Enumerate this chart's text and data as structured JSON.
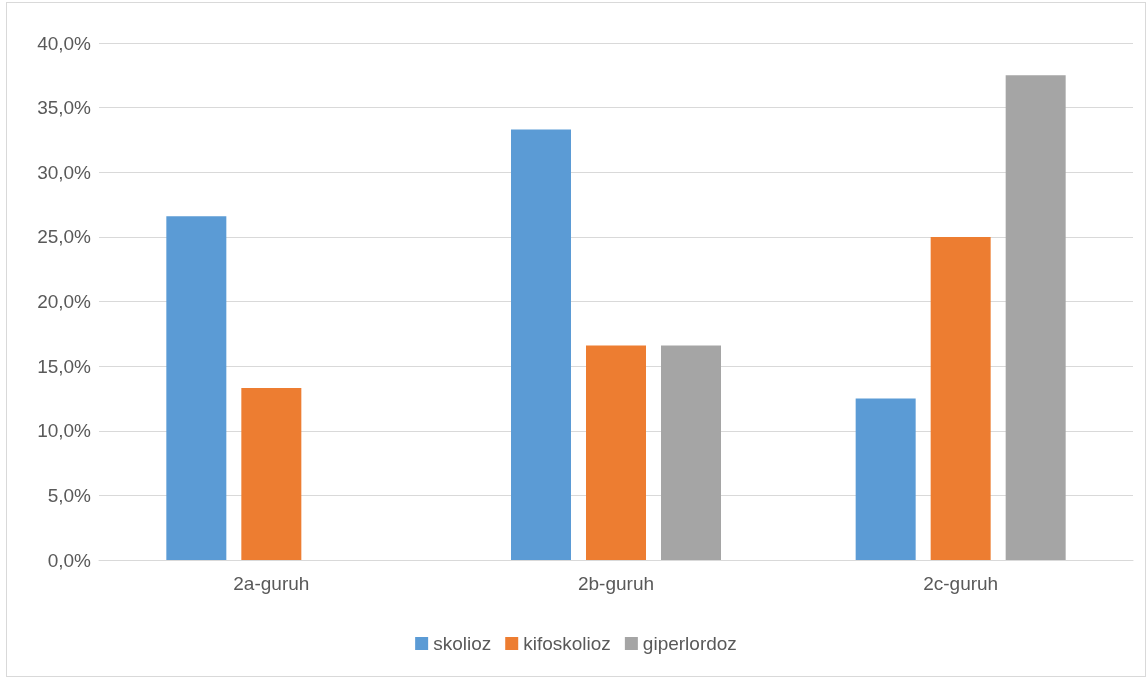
{
  "chart_data": {
    "type": "bar",
    "categories": [
      "2a-guruh",
      "2b-guruh",
      "2c-guruh"
    ],
    "series": [
      {
        "name": "skolioz",
        "color": "#5b9bd5",
        "values": [
          26.6,
          33.3,
          12.5
        ]
      },
      {
        "name": "kifoskolioz",
        "color": "#ed7d31",
        "values": [
          13.3,
          16.6,
          25.0
        ]
      },
      {
        "name": "giperlordoz",
        "color": "#a5a5a5",
        "values": [
          null,
          16.6,
          37.5
        ]
      }
    ],
    "ylim": [
      0,
      40
    ],
    "yticks": [
      {
        "value": 0,
        "label": "0,0%"
      },
      {
        "value": 5,
        "label": "5,0%"
      },
      {
        "value": 10,
        "label": "10,0%"
      },
      {
        "value": 15,
        "label": "15,0%"
      },
      {
        "value": 20,
        "label": "20,0%"
      },
      {
        "value": 25,
        "label": "25,0%"
      },
      {
        "value": 30,
        "label": "30,0%"
      },
      {
        "value": 35,
        "label": "35,0%"
      },
      {
        "value": 40,
        "label": "40,0%"
      }
    ],
    "grid": "y",
    "legend": "bottom"
  }
}
